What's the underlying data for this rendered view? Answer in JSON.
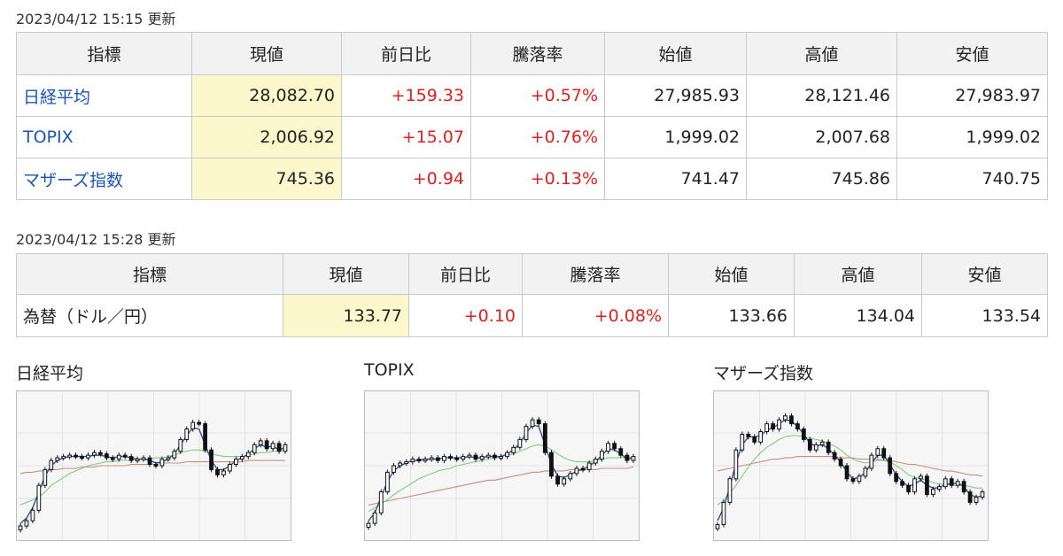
{
  "stock": {
    "updated": "2023/04/12 15:15 更新",
    "headers": [
      "指標",
      "現値",
      "前日比",
      "騰落率",
      "始値",
      "高値",
      "安値"
    ],
    "rows": [
      {
        "name": "日経平均",
        "current": "28,082.70",
        "change": "+159.33",
        "rate": "+0.57%",
        "open": "27,985.93",
        "high": "28,121.46",
        "low": "27,983.97"
      },
      {
        "name": "TOPIX",
        "current": "2,006.92",
        "change": "+15.07",
        "rate": "+0.76%",
        "open": "1,999.02",
        "high": "2,007.68",
        "low": "1,999.02"
      },
      {
        "name": "マザーズ指数",
        "current": "745.36",
        "change": "+0.94",
        "rate": "+0.13%",
        "open": "741.47",
        "high": "745.86",
        "low": "740.75"
      }
    ]
  },
  "fx": {
    "updated": "2023/04/12 15:28 更新",
    "headers": [
      "指標",
      "現値",
      "前日比",
      "騰落率",
      "始値",
      "高値",
      "安値"
    ],
    "rows": [
      {
        "name": "為替（ドル／円）",
        "current": "133.77",
        "change": "+0.10",
        "rate": "+0.08%",
        "open": "133.66",
        "high": "134.04",
        "low": "133.54"
      }
    ]
  },
  "colors": {
    "up": "#e0201b",
    "link": "#1a55b5",
    "highlight": "#fdf8cc",
    "header_bg": "#f2f2f2"
  },
  "chart_data": [
    {
      "type": "line",
      "title": "日経平均",
      "y_norm": {
        "close": [
          0.04,
          0.08,
          0.16,
          0.35,
          0.47,
          0.54,
          0.56,
          0.57,
          0.58,
          0.57,
          0.56,
          0.58,
          0.6,
          0.59,
          0.56,
          0.55,
          0.58,
          0.57,
          0.54,
          0.55,
          0.56,
          0.51,
          0.5,
          0.55,
          0.56,
          0.61,
          0.7,
          0.78,
          0.83,
          0.82,
          0.62,
          0.47,
          0.43,
          0.46,
          0.51,
          0.55,
          0.57,
          0.6,
          0.66,
          0.69,
          0.63,
          0.67,
          0.61,
          0.66
        ],
        "ma_fast": [
          0.06,
          0.1,
          0.18,
          0.3,
          0.42,
          0.5,
          0.54,
          0.56,
          0.57,
          0.57,
          0.57,
          0.57,
          0.58,
          0.58,
          0.57,
          0.56,
          0.57,
          0.57,
          0.56,
          0.55,
          0.55,
          0.54,
          0.52,
          0.53,
          0.55,
          0.59,
          0.66,
          0.73,
          0.79,
          0.78,
          0.66,
          0.54,
          0.47,
          0.47,
          0.5,
          0.54,
          0.56,
          0.59,
          0.63,
          0.66,
          0.64,
          0.65,
          0.62,
          0.64
        ],
        "ma_slow": [
          0.2,
          0.22,
          0.24,
          0.26,
          0.3,
          0.35,
          0.38,
          0.41,
          0.44,
          0.46,
          0.48,
          0.5,
          0.51,
          0.52,
          0.53,
          0.53,
          0.54,
          0.54,
          0.54,
          0.55,
          0.55,
          0.55,
          0.56,
          0.56,
          0.57,
          0.58,
          0.6,
          0.61,
          0.62,
          0.62,
          0.61,
          0.59,
          0.58,
          0.57,
          0.57,
          0.57,
          0.57,
          0.58,
          0.59,
          0.6,
          0.6,
          0.61,
          0.61,
          0.62
        ],
        "ma_long": [
          0.44,
          0.45,
          0.45,
          0.46,
          0.46,
          0.47,
          0.47,
          0.48,
          0.48,
          0.48,
          0.49,
          0.49,
          0.49,
          0.5,
          0.5,
          0.5,
          0.5,
          0.5,
          0.51,
          0.51,
          0.51,
          0.51,
          0.51,
          0.52,
          0.52,
          0.52,
          0.52,
          0.53,
          0.53,
          0.53,
          0.53,
          0.53,
          0.53,
          0.53,
          0.53,
          0.53,
          0.53,
          0.54,
          0.54,
          0.54,
          0.54,
          0.54,
          0.54,
          0.54
        ]
      }
    },
    {
      "type": "line",
      "title": "TOPIX",
      "y_norm": {
        "close": [
          0.06,
          0.14,
          0.3,
          0.45,
          0.5,
          0.52,
          0.53,
          0.55,
          0.54,
          0.55,
          0.56,
          0.54,
          0.57,
          0.56,
          0.55,
          0.57,
          0.58,
          0.55,
          0.57,
          0.58,
          0.56,
          0.57,
          0.6,
          0.64,
          0.7,
          0.8,
          0.85,
          0.82,
          0.6,
          0.42,
          0.36,
          0.4,
          0.44,
          0.48,
          0.47,
          0.52,
          0.55,
          0.61,
          0.67,
          0.63,
          0.58,
          0.54,
          0.57
        ],
        "ma_fast": [
          0.08,
          0.14,
          0.26,
          0.38,
          0.46,
          0.5,
          0.52,
          0.54,
          0.54,
          0.55,
          0.55,
          0.55,
          0.56,
          0.56,
          0.56,
          0.56,
          0.57,
          0.56,
          0.56,
          0.57,
          0.57,
          0.57,
          0.59,
          0.62,
          0.67,
          0.75,
          0.81,
          0.8,
          0.66,
          0.51,
          0.42,
          0.41,
          0.43,
          0.46,
          0.47,
          0.5,
          0.53,
          0.58,
          0.63,
          0.62,
          0.59,
          0.55,
          0.56
        ],
        "ma_slow": [
          0.15,
          0.18,
          0.21,
          0.24,
          0.28,
          0.31,
          0.34,
          0.37,
          0.4,
          0.42,
          0.44,
          0.46,
          0.47,
          0.48,
          0.5,
          0.51,
          0.52,
          0.53,
          0.54,
          0.55,
          0.56,
          0.57,
          0.58,
          0.59,
          0.61,
          0.63,
          0.65,
          0.66,
          0.65,
          0.62,
          0.59,
          0.56,
          0.54,
          0.53,
          0.53,
          0.53,
          0.54,
          0.55,
          0.56,
          0.56,
          0.56,
          0.56,
          0.57
        ],
        "ma_long": [
          0.2,
          0.21,
          0.22,
          0.23,
          0.24,
          0.25,
          0.26,
          0.27,
          0.28,
          0.29,
          0.3,
          0.31,
          0.32,
          0.33,
          0.34,
          0.35,
          0.36,
          0.37,
          0.38,
          0.39,
          0.39,
          0.4,
          0.41,
          0.42,
          0.43,
          0.44,
          0.45,
          0.45,
          0.46,
          0.46,
          0.46,
          0.46,
          0.47,
          0.47,
          0.47,
          0.47,
          0.47,
          0.48,
          0.48,
          0.48,
          0.48,
          0.48,
          0.49
        ]
      }
    },
    {
      "type": "line",
      "title": "マザーズ指数",
      "y_norm": {
        "close": [
          0.05,
          0.22,
          0.4,
          0.62,
          0.74,
          0.72,
          0.68,
          0.76,
          0.82,
          0.78,
          0.85,
          0.88,
          0.82,
          0.78,
          0.7,
          0.62,
          0.66,
          0.68,
          0.6,
          0.55,
          0.5,
          0.4,
          0.38,
          0.42,
          0.48,
          0.58,
          0.63,
          0.56,
          0.44,
          0.38,
          0.35,
          0.3,
          0.4,
          0.42,
          0.28,
          0.32,
          0.34,
          0.4,
          0.35,
          0.38,
          0.3,
          0.22,
          0.26,
          0.3
        ],
        "ma_fast": [
          0.08,
          0.18,
          0.34,
          0.52,
          0.66,
          0.72,
          0.72,
          0.73,
          0.77,
          0.79,
          0.82,
          0.85,
          0.84,
          0.8,
          0.74,
          0.67,
          0.65,
          0.66,
          0.63,
          0.58,
          0.53,
          0.45,
          0.4,
          0.41,
          0.45,
          0.52,
          0.58,
          0.58,
          0.51,
          0.43,
          0.38,
          0.34,
          0.36,
          0.39,
          0.35,
          0.33,
          0.33,
          0.36,
          0.36,
          0.37,
          0.34,
          0.28,
          0.26,
          0.27
        ],
        "ma_slow": [
          0.2,
          0.24,
          0.29,
          0.35,
          0.42,
          0.49,
          0.55,
          0.6,
          0.64,
          0.67,
          0.7,
          0.72,
          0.73,
          0.73,
          0.72,
          0.71,
          0.7,
          0.69,
          0.67,
          0.65,
          0.62,
          0.58,
          0.55,
          0.53,
          0.52,
          0.53,
          0.54,
          0.54,
          0.53,
          0.5,
          0.47,
          0.43,
          0.41,
          0.4,
          0.39,
          0.37,
          0.36,
          0.36,
          0.35,
          0.35,
          0.35,
          0.34,
          0.33,
          0.33
        ],
        "ma_long": [
          0.46,
          0.47,
          0.48,
          0.49,
          0.5,
          0.51,
          0.52,
          0.53,
          0.54,
          0.55,
          0.55,
          0.56,
          0.56,
          0.57,
          0.57,
          0.57,
          0.57,
          0.57,
          0.57,
          0.57,
          0.56,
          0.56,
          0.56,
          0.55,
          0.55,
          0.55,
          0.55,
          0.54,
          0.54,
          0.53,
          0.52,
          0.51,
          0.51,
          0.5,
          0.49,
          0.48,
          0.47,
          0.46,
          0.46,
          0.45,
          0.44,
          0.43,
          0.43,
          0.42
        ]
      },
      "series_colors": {
        "close": "#111111",
        "ma_fast": "#2f4fa8",
        "ma_slow": "#7ccf7a",
        "ma_long": "#c98c80"
      }
    }
  ]
}
